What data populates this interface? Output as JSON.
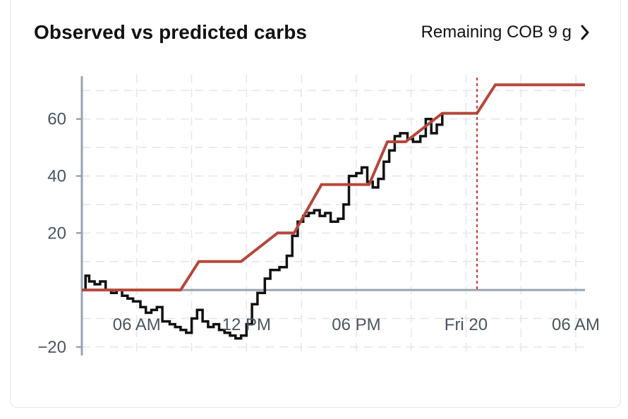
{
  "header": {
    "title": "Observed vs predicted carbs",
    "remaining_label": "Remaining COB 9 g"
  },
  "icons": {
    "cob_link": "chevron-right-icon"
  },
  "colors": {
    "observed": "#111111",
    "predicted": "#b5473a",
    "axis": "#9aa3ab",
    "grid": "#e3e6e9",
    "now_marker": "#c0392b"
  },
  "chart_data": {
    "type": "line",
    "title": "Observed vs predicted carbs",
    "xlabel": "",
    "ylabel": "",
    "x_unit": "hours",
    "x_ticks": [
      {
        "x": 3,
        "label": "06 AM"
      },
      {
        "x": 9,
        "label": "12 PM"
      },
      {
        "x": 15,
        "label": "06 PM"
      },
      {
        "x": 21,
        "label": "Fri 20"
      },
      {
        "x": 27,
        "label": "06 AM"
      }
    ],
    "y_ticks": [
      {
        "y": 60,
        "label": "60"
      },
      {
        "y": 40,
        "label": "40"
      },
      {
        "y": 20,
        "label": "20"
      },
      {
        "y": -20,
        "label": "−20"
      }
    ],
    "xlim": [
      0,
      27.5
    ],
    "ylim": [
      -22,
      78
    ],
    "grid": true,
    "now_x": 21.6,
    "series": [
      {
        "key": "observed",
        "step": true,
        "points": [
          [
            0.0,
            0
          ],
          [
            0.2,
            5
          ],
          [
            0.4,
            3
          ],
          [
            0.7,
            2
          ],
          [
            1.0,
            3
          ],
          [
            1.3,
            0
          ],
          [
            1.6,
            -1
          ],
          [
            1.9,
            0
          ],
          [
            2.2,
            -2
          ],
          [
            2.5,
            -3
          ],
          [
            2.8,
            -4
          ],
          [
            3.2,
            -6
          ],
          [
            3.5,
            -8
          ],
          [
            3.8,
            -7
          ],
          [
            4.1,
            -6
          ],
          [
            4.4,
            -11
          ],
          [
            4.8,
            -12
          ],
          [
            5.1,
            -13
          ],
          [
            5.4,
            -14
          ],
          [
            5.7,
            -15
          ],
          [
            6.0,
            -10
          ],
          [
            6.3,
            -7
          ],
          [
            6.6,
            -11
          ],
          [
            6.9,
            -13
          ],
          [
            7.2,
            -12
          ],
          [
            7.5,
            -14
          ],
          [
            7.8,
            -15
          ],
          [
            8.1,
            -16
          ],
          [
            8.4,
            -17
          ],
          [
            8.7,
            -16
          ],
          [
            9.0,
            -12
          ],
          [
            9.3,
            -5
          ],
          [
            9.6,
            -1
          ],
          [
            10.0,
            4
          ],
          [
            10.3,
            7
          ],
          [
            10.8,
            8
          ],
          [
            11.2,
            12
          ],
          [
            11.5,
            19
          ],
          [
            11.8,
            24
          ],
          [
            12.1,
            26
          ],
          [
            12.4,
            27
          ],
          [
            12.7,
            28
          ],
          [
            13.0,
            26
          ],
          [
            13.3,
            27
          ],
          [
            13.6,
            24
          ],
          [
            14.0,
            25
          ],
          [
            14.3,
            30
          ],
          [
            14.6,
            40
          ],
          [
            15.0,
            41
          ],
          [
            15.3,
            43
          ],
          [
            15.6,
            38
          ],
          [
            15.9,
            36
          ],
          [
            16.2,
            39
          ],
          [
            16.5,
            45
          ],
          [
            16.8,
            49
          ],
          [
            17.1,
            54
          ],
          [
            17.4,
            55
          ],
          [
            17.8,
            53
          ],
          [
            18.1,
            52
          ],
          [
            18.5,
            54
          ],
          [
            18.8,
            60
          ],
          [
            19.1,
            55
          ],
          [
            19.4,
            58
          ],
          [
            19.7,
            62
          ]
        ]
      },
      {
        "key": "predicted",
        "step": false,
        "points": [
          [
            0.0,
            0
          ],
          [
            5.4,
            0
          ],
          [
            6.4,
            10
          ],
          [
            8.7,
            10
          ],
          [
            10.7,
            20
          ],
          [
            11.6,
            20
          ],
          [
            13.1,
            37
          ],
          [
            15.7,
            37
          ],
          [
            16.7,
            52
          ],
          [
            17.7,
            52
          ],
          [
            19.7,
            62
          ],
          [
            21.6,
            62
          ],
          [
            22.6,
            72
          ],
          [
            27.5,
            72
          ]
        ]
      }
    ]
  }
}
